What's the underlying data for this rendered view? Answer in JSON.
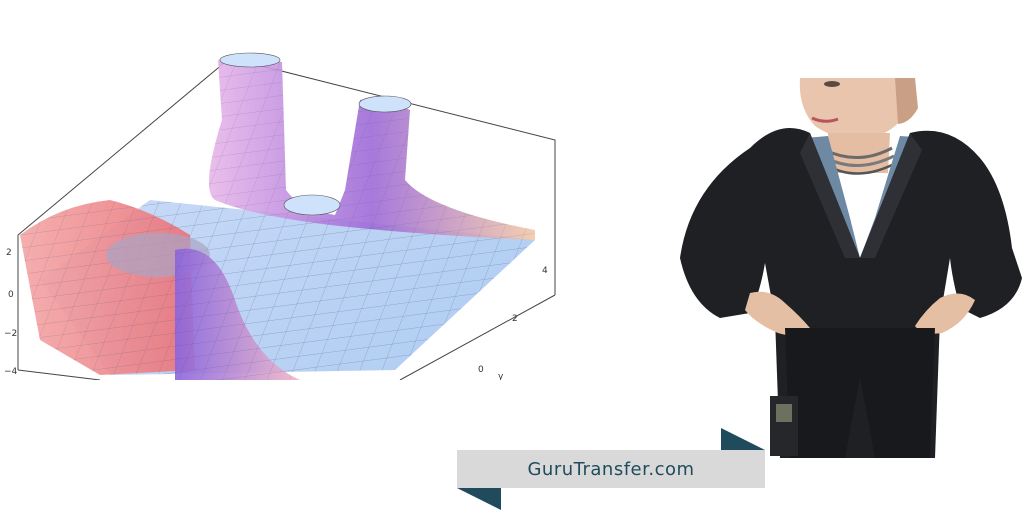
{
  "plot": {
    "z_ticks": [
      "2",
      "0",
      "−2",
      "−4"
    ],
    "y_ticks": [
      "4",
      "2",
      "0"
    ],
    "y_axis_label": "y"
  },
  "banner": {
    "text": "GuruTransfer.com",
    "colors": {
      "text": "#1f4b5c",
      "background": "#d9d9d9",
      "fold": "#1f4b5c"
    }
  }
}
